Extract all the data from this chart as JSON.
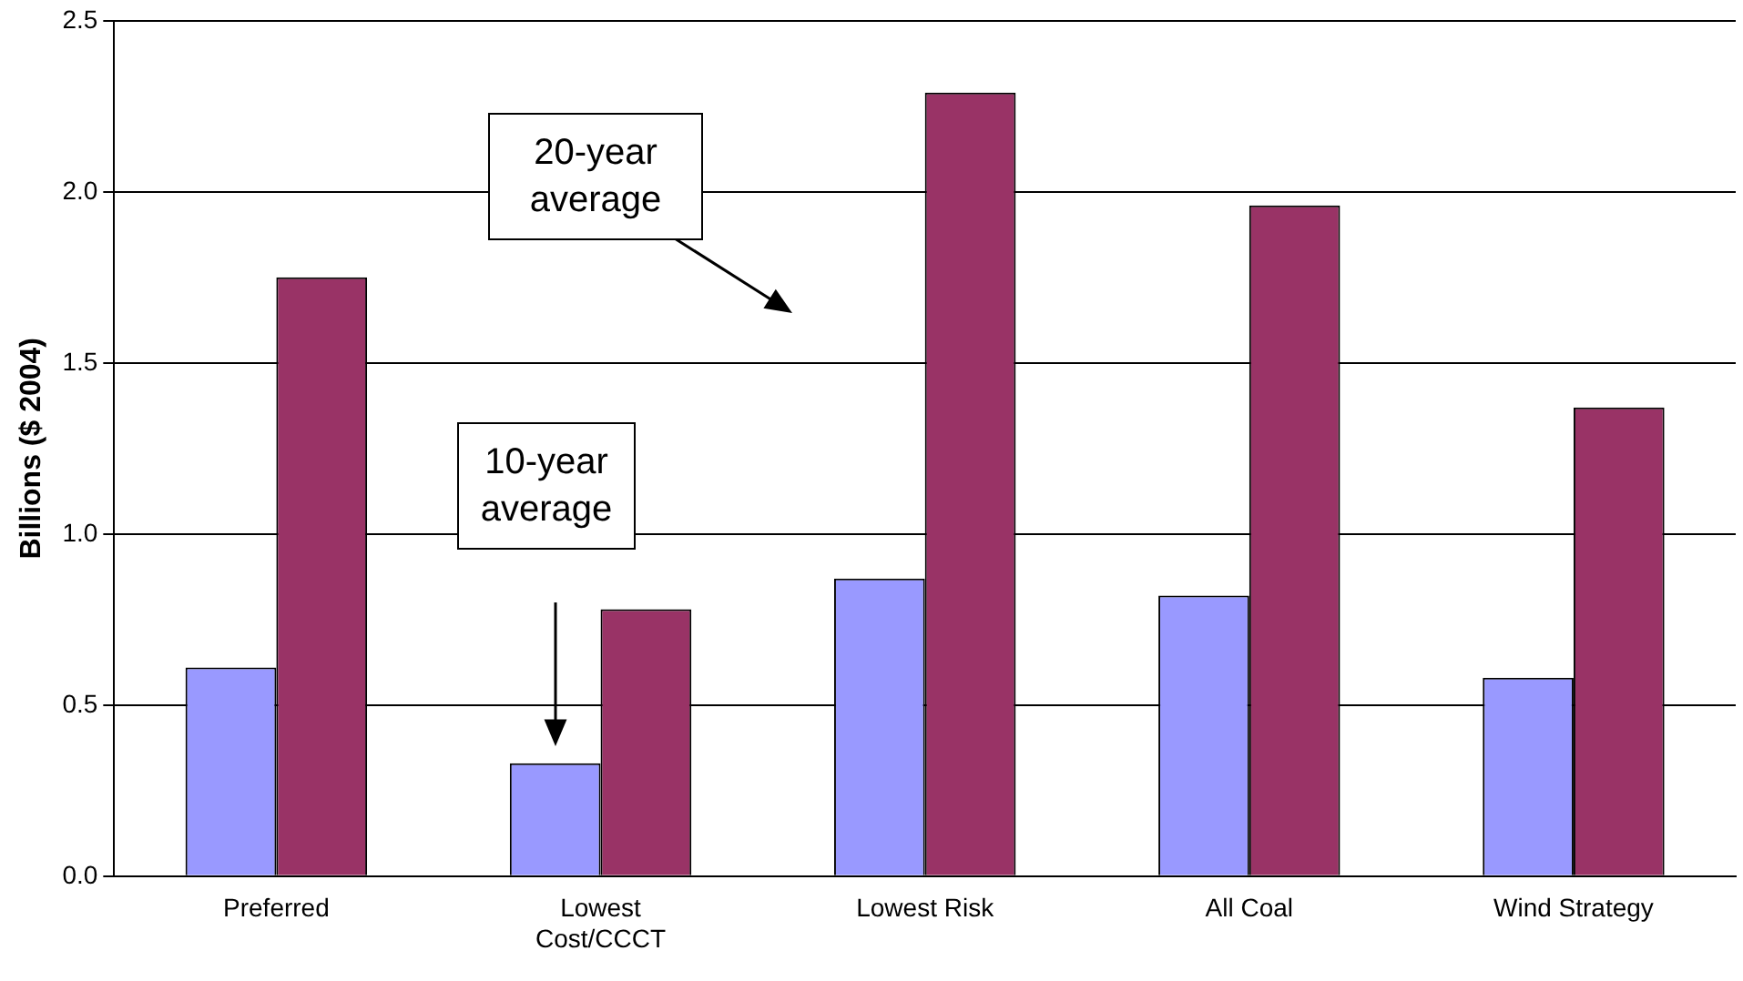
{
  "chart_data": {
    "type": "bar",
    "ylabel": "Billions ($ 2004)",
    "categories": [
      "Preferred",
      "Lowest Cost/CCCT",
      "Lowest Risk",
      "All Coal",
      "Wind Strategy"
    ],
    "series": [
      {
        "color": "#9999ff",
        "values": [
          0.61,
          0.33,
          0.87,
          0.82,
          0.58
        ]
      },
      {
        "color": "#993366",
        "values": [
          1.75,
          0.78,
          2.29,
          1.96,
          1.37
        ]
      }
    ],
    "ylim": [
      0,
      2.5
    ],
    "yticks": [
      {
        "value": 0,
        "label": "0.0"
      },
      {
        "value": 0.5,
        "label": "0.5"
      },
      {
        "value": 1,
        "label": "1.0"
      },
      {
        "value": 1.5,
        "label": "1.5"
      },
      {
        "value": 2,
        "label": "2.0"
      },
      {
        "value": 2.5,
        "label": "2.5"
      }
    ],
    "grid": "y",
    "legend": false,
    "annotations": [
      "10-year average",
      "20-year average"
    ]
  }
}
